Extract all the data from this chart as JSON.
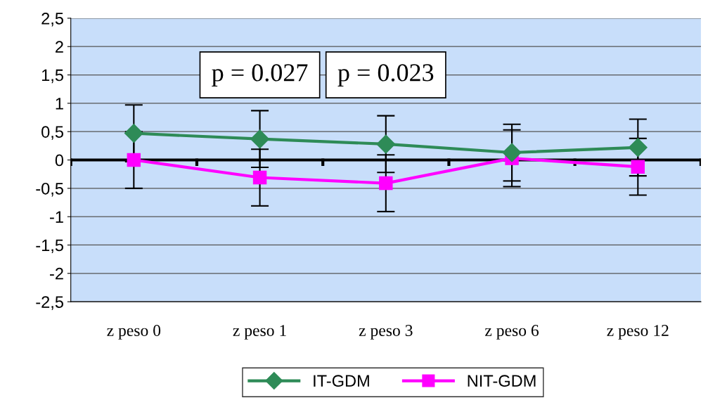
{
  "chart_data": {
    "type": "line",
    "categories": [
      "z peso 0",
      "z peso 1",
      "z peso 3",
      "z peso 6",
      "z peso 12"
    ],
    "series": [
      {
        "name": "IT-GDM",
        "color": "#2e8b57",
        "marker": "diamond",
        "values": [
          0.47,
          0.37,
          0.28,
          0.13,
          0.22
        ],
        "errors": [
          0.5,
          0.5,
          0.5,
          0.5,
          0.5
        ]
      },
      {
        "name": "NIT-GDM",
        "color": "#ff00ff",
        "marker": "square",
        "values": [
          0.0,
          -0.31,
          -0.41,
          0.03,
          -0.12
        ],
        "errors": [
          0.5,
          0.5,
          0.5,
          0.5,
          0.5
        ]
      }
    ],
    "ylim": [
      -2.5,
      2.5
    ],
    "yticks": [
      {
        "value": -2.5,
        "label": "-2,5"
      },
      -2,
      {
        "value": -1.5,
        "label": "-1,5"
      },
      -1,
      {
        "value": -0.5,
        "label": "-0,5"
      },
      0,
      {
        "value": 0.5,
        "label": "0,5"
      },
      1,
      {
        "value": 1.5,
        "label": "1,5"
      },
      2,
      {
        "value": 2.5,
        "label": "2,5"
      }
    ],
    "grid": "y",
    "legend": "bottom",
    "line_style": "solid",
    "annotations": [
      "p = 0.027",
      "p = 0.023"
    ]
  }
}
